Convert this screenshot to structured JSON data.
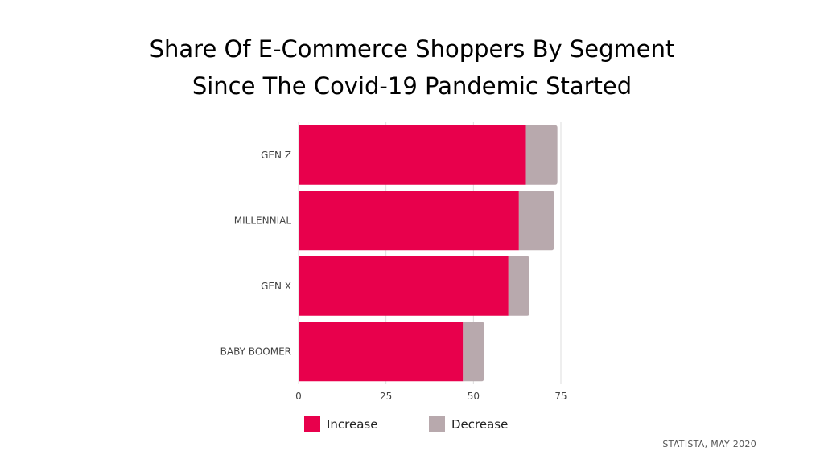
{
  "title_line1": "Share Of E-Commerce Shoppers By Segment",
  "title_line2": "Since The Covid-19 Pandemic Started",
  "source": "STATISTA, MAY 2020",
  "legend": {
    "increase": "Increase",
    "decrease": "Decrease"
  },
  "colors": {
    "increase": "#e8004c",
    "decrease": "#b8a9ad",
    "grid": "#dddddd",
    "axis_text": "#444444"
  },
  "chart_data": {
    "type": "bar",
    "orientation": "horizontal",
    "stacked": true,
    "categories": [
      "GEN Z",
      "MILLENNIAL",
      "GEN X",
      "BABY BOOMER"
    ],
    "series": [
      {
        "name": "Increase",
        "values": [
          65,
          63,
          60,
          47
        ]
      },
      {
        "name": "Decrease",
        "values": [
          9,
          10,
          6,
          6
        ]
      }
    ],
    "xticks": [
      0,
      25,
      50,
      75
    ],
    "xlim": [
      0,
      75
    ],
    "grid": true,
    "legend_position": "bottom"
  }
}
